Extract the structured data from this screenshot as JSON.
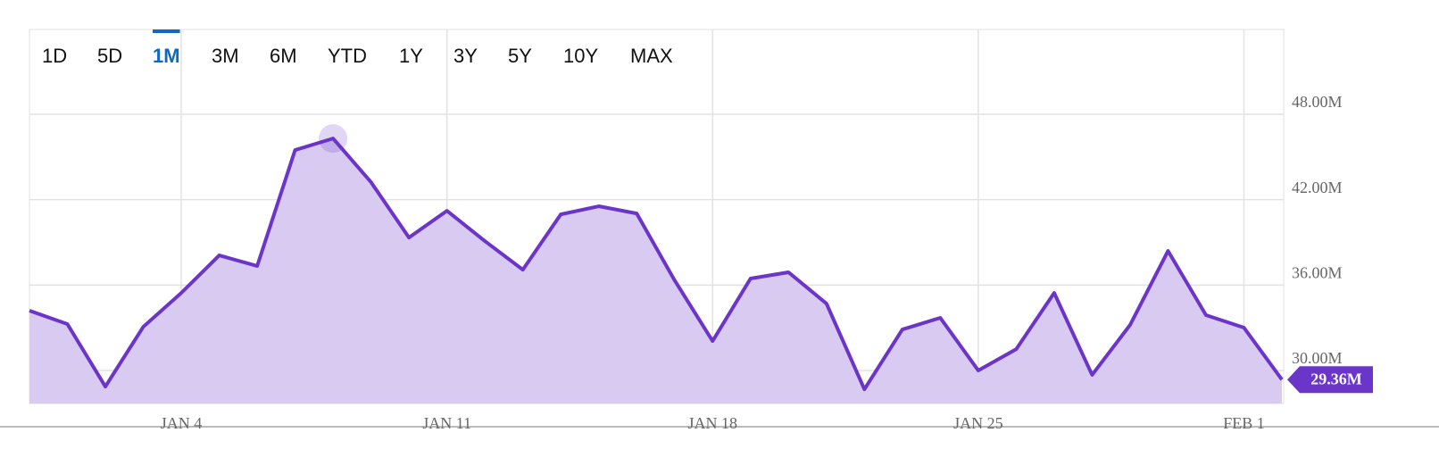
{
  "range_options": [
    "1D",
    "5D",
    "1M",
    "3M",
    "6M",
    "YTD",
    "1Y",
    "3Y",
    "5Y",
    "10Y",
    "MAX"
  ],
  "selected_range": "1M",
  "chart_data": {
    "type": "area",
    "categories": [
      null,
      null,
      null,
      null,
      "JAN 4",
      null,
      null,
      null,
      null,
      null,
      null,
      "JAN 11",
      null,
      null,
      null,
      null,
      null,
      null,
      "JAN 18",
      null,
      null,
      null,
      null,
      null,
      null,
      "JAN 25",
      null,
      null,
      null,
      null,
      null,
      null,
      "FEB 1",
      null
    ],
    "values": [
      34.2,
      33.26,
      28.87,
      33.07,
      35.45,
      38.09,
      37.34,
      45.49,
      46.3,
      43.23,
      39.34,
      41.22,
      39.09,
      37.08,
      40.97,
      41.54,
      41.03,
      36.33,
      32.07,
      36.46,
      36.9,
      34.7,
      28.68,
      32.88,
      33.7,
      30.0,
      31.5,
      35.45,
      29.69,
      33.2,
      38.4,
      33.89,
      33.01,
      29.36
    ],
    "value_labels": [
      null,
      null,
      null,
      null,
      null,
      null,
      null,
      null,
      null,
      null,
      null,
      null,
      null,
      null,
      null,
      null,
      null,
      null,
      null,
      null,
      null,
      null,
      null,
      null,
      null,
      null,
      null,
      null,
      null,
      null,
      null,
      null,
      null,
      "29.36M"
    ],
    "highlight_index": 8,
    "color": "#6a35c8",
    "fill_color": "#d9caf1",
    "ylim": [
      27.68,
      53.96
    ],
    "yticks": [
      {
        "value": 30,
        "label": "30.00M"
      },
      {
        "value": 36,
        "label": "36.00M"
      },
      {
        "value": 42,
        "label": "42.00M"
      },
      {
        "value": 48,
        "label": "48.00M"
      }
    ],
    "grid": true
  }
}
